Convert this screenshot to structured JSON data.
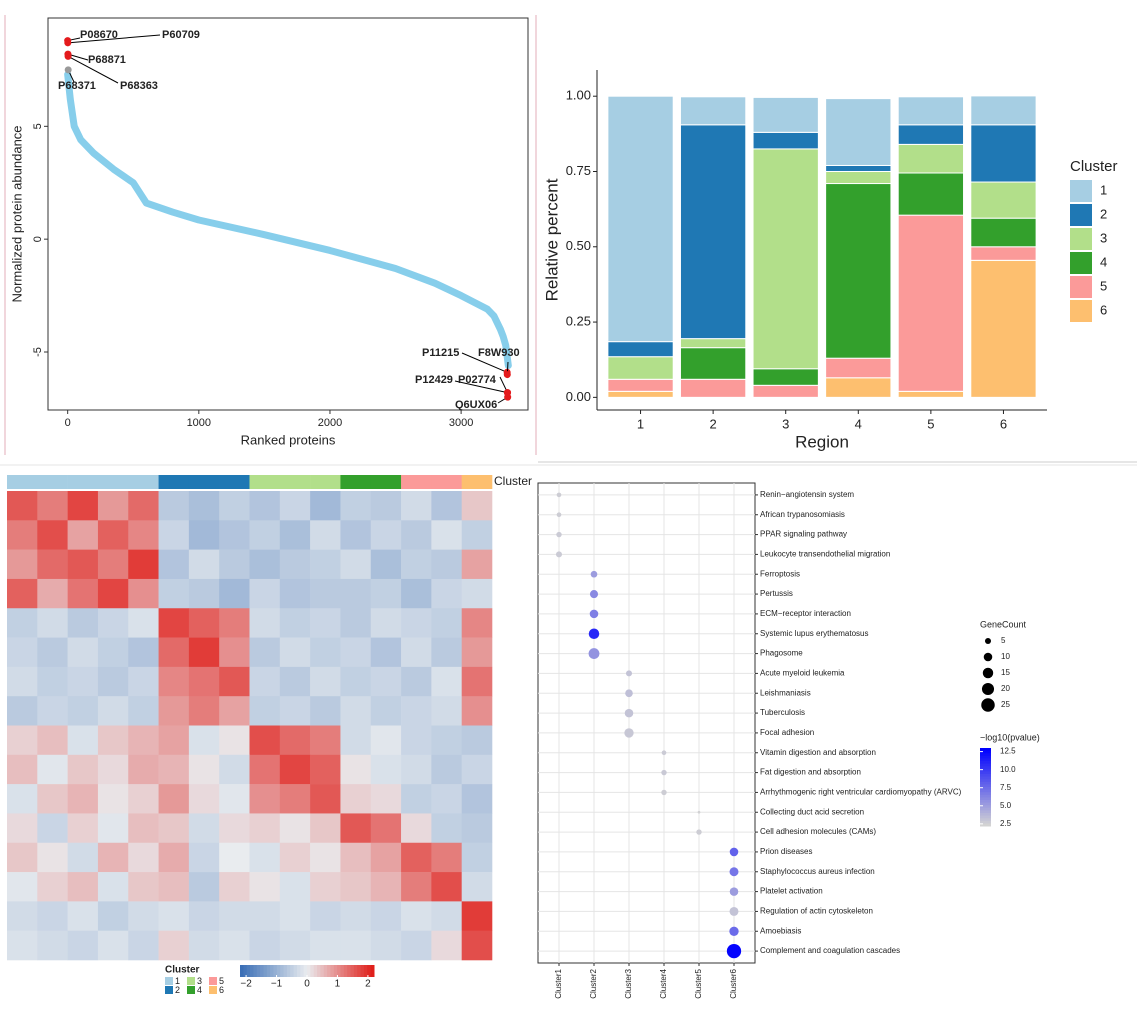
{
  "chart_data": [
    {
      "type": "line",
      "xlabel": "Ranked proteins",
      "ylabel": "Normalized protein abundance",
      "series": [
        {
          "name": null,
          "color": "#87ceeb",
          "x": [
            0,
            20,
            50,
            100,
            200,
            350,
            500,
            600,
            800,
            1000,
            1500,
            2000,
            2500,
            2800,
            3000,
            3100,
            3200,
            3250,
            3300,
            3320,
            3340,
            3360
          ],
          "values": [
            7.3,
            6.2,
            5.0,
            4.4,
            3.8,
            3.1,
            2.5,
            1.6,
            1.2,
            0.85,
            0.2,
            -0.5,
            -1.3,
            -1.95,
            -2.5,
            -2.8,
            -3.1,
            -3.4,
            -4.0,
            -4.3,
            -4.7,
            -5.6
          ]
        }
      ],
      "highlights": {
        "color": "#e41a1c",
        "labels": [
          "P08670",
          "P60709",
          "P68871",
          "P68363",
          "P68371",
          "P11215",
          "F8W930",
          "P12429",
          "P02774",
          "Q6UX06"
        ],
        "x": [
          0,
          1,
          2,
          3,
          4,
          3351,
          3352,
          3353,
          3354,
          3355
        ],
        "values": [
          8.8,
          8.7,
          8.2,
          8.1,
          7.5,
          -5.9,
          -6.0,
          -6.8,
          -6.8,
          -7.0
        ]
      },
      "xlim": [
        -150,
        3510
      ],
      "ylim": [
        -7.57,
        9.8
      ],
      "xticks": [
        0,
        1000,
        2000,
        3000
      ],
      "yticks": [
        {
          "value": -5,
          "label": "-5"
        },
        0,
        5
      ]
    },
    {
      "type": "bar",
      "stacked": true,
      "xlabel": "Region",
      "ylabel": "Relative percent",
      "legend_title": "Cluster",
      "categories": [
        "1",
        "2",
        "3",
        "4",
        "5",
        "6"
      ],
      "series": [
        {
          "name": "6",
          "color": "#fdbf6f",
          "values": [
            0.02,
            0,
            0,
            0.065,
            0.02,
            0.455
          ]
        },
        {
          "name": "5",
          "color": "#fb9a99",
          "values": [
            0.04,
            0.06,
            0.04,
            0.065,
            0.585,
            0.045
          ]
        },
        {
          "name": "4",
          "color": "#33a02c",
          "values": [
            0,
            0.105,
            0.055,
            0.58,
            0.14,
            0.095
          ]
        },
        {
          "name": "3",
          "color": "#b2df8a",
          "values": [
            0.075,
            0.03,
            0.73,
            0.04,
            0.095,
            0.12
          ]
        },
        {
          "name": "2",
          "color": "#1f78b4",
          "values": [
            0.05,
            0.71,
            0.055,
            0.02,
            0.065,
            0.19
          ]
        },
        {
          "name": "1",
          "color": "#a6cee3",
          "values": [
            0.815,
            0.093,
            0.116,
            0.222,
            0.093,
            0.096
          ]
        }
      ],
      "ylim": [
        -0.042,
        1.087
      ],
      "yticks": [
        {
          "value": 0,
          "label": "0.00"
        },
        {
          "value": 0.25,
          "label": "0.25"
        },
        {
          "value": 0.5,
          "label": "0.50"
        },
        {
          "value": 0.75,
          "label": "0.75"
        },
        {
          "value": 1,
          "label": "1.00"
        }
      ]
    },
    {
      "type": "heatmap",
      "annotation_label": "Cluster",
      "legend": {
        "title": "Cluster",
        "names": [
          "1",
          "2",
          "3",
          "4",
          "5",
          "6"
        ],
        "colors": [
          "#a6cee3",
          "#1f78b4",
          "#b2df8a",
          "#33a02c",
          "#fb9a99",
          "#fdbf6f"
        ]
      },
      "column_clusters": [
        "1",
        "1",
        "1",
        "1",
        "1",
        "2",
        "2",
        "2",
        "3",
        "3",
        "3",
        "4",
        "4",
        "5",
        "5",
        "6"
      ],
      "values": [
        [
          1.6,
          1.2,
          1.8,
          0.9,
          1.4,
          -0.6,
          -0.8,
          -0.5,
          -0.7,
          -0.4,
          -0.9,
          -0.5,
          -0.6,
          -0.3,
          -0.7,
          0.4
        ],
        [
          1.2,
          1.7,
          0.8,
          1.5,
          1.1,
          -0.4,
          -0.9,
          -0.7,
          -0.5,
          -0.8,
          -0.3,
          -0.7,
          -0.4,
          -0.6,
          -0.2,
          -0.5
        ],
        [
          0.9,
          1.4,
          1.6,
          1.2,
          1.9,
          -0.7,
          -0.3,
          -0.6,
          -0.8,
          -0.6,
          -0.5,
          -0.3,
          -0.8,
          -0.5,
          -0.6,
          0.8
        ],
        [
          1.5,
          0.7,
          1.3,
          1.8,
          1.0,
          -0.5,
          -0.6,
          -0.9,
          -0.4,
          -0.7,
          -0.6,
          -0.6,
          -0.5,
          -0.8,
          -0.4,
          -0.3
        ],
        [
          -0.5,
          -0.3,
          -0.6,
          -0.4,
          -0.2,
          1.8,
          1.5,
          1.2,
          -0.3,
          -0.5,
          -0.4,
          -0.6,
          -0.3,
          -0.4,
          -0.5,
          1.1
        ],
        [
          -0.4,
          -0.6,
          -0.3,
          -0.5,
          -0.7,
          1.4,
          1.9,
          1.0,
          -0.6,
          -0.3,
          -0.5,
          -0.4,
          -0.7,
          -0.3,
          -0.6,
          0.9
        ],
        [
          -0.3,
          -0.5,
          -0.4,
          -0.6,
          -0.4,
          1.1,
          1.3,
          1.6,
          -0.4,
          -0.6,
          -0.3,
          -0.5,
          -0.4,
          -0.6,
          -0.2,
          1.3
        ],
        [
          -0.6,
          -0.4,
          -0.5,
          -0.3,
          -0.5,
          0.9,
          1.2,
          0.8,
          -0.5,
          -0.4,
          -0.6,
          -0.3,
          -0.5,
          -0.4,
          -0.3,
          1.0
        ],
        [
          0.3,
          0.5,
          -0.2,
          0.4,
          0.6,
          0.8,
          -0.2,
          0.1,
          1.7,
          1.4,
          1.2,
          -0.3,
          -0.1,
          -0.4,
          -0.5,
          -0.6
        ],
        [
          0.5,
          -0.1,
          0.4,
          0.2,
          0.7,
          0.6,
          0.1,
          -0.3,
          1.3,
          1.8,
          1.5,
          0.1,
          -0.2,
          -0.3,
          -0.6,
          -0.4
        ],
        [
          -0.2,
          0.4,
          0.6,
          0.1,
          0.3,
          0.9,
          0.2,
          -0.1,
          1.0,
          1.2,
          1.6,
          0.3,
          0.2,
          -0.5,
          -0.4,
          -0.7
        ],
        [
          0.2,
          -0.4,
          0.3,
          -0.1,
          0.5,
          0.4,
          -0.3,
          0.2,
          0.3,
          0.1,
          0.4,
          1.6,
          1.3,
          0.2,
          -0.5,
          -0.6
        ],
        [
          0.4,
          0.1,
          -0.3,
          0.6,
          0.2,
          0.7,
          -0.4,
          0.0,
          -0.2,
          0.3,
          0.1,
          0.5,
          0.8,
          1.5,
          1.2,
          -0.5
        ],
        [
          -0.1,
          0.3,
          0.5,
          -0.2,
          0.4,
          0.5,
          -0.6,
          0.3,
          0.1,
          -0.2,
          0.3,
          0.4,
          0.6,
          1.2,
          1.7,
          -0.3
        ],
        [
          -0.3,
          -0.4,
          -0.2,
          -0.5,
          -0.3,
          -0.2,
          -0.4,
          -0.3,
          -0.3,
          -0.2,
          -0.4,
          -0.3,
          -0.4,
          -0.2,
          -0.3,
          1.9
        ],
        [
          -0.2,
          -0.3,
          -0.4,
          -0.2,
          -0.4,
          0.3,
          -0.3,
          -0.2,
          -0.4,
          -0.3,
          -0.2,
          -0.2,
          -0.3,
          -0.4,
          0.2,
          1.7
        ]
      ],
      "colorlim": [
        -2.2,
        2.2
      ],
      "colors": [
        "#3b6fb6",
        "#e9ecef",
        "#e0201b"
      ],
      "colorticks": [
        {
          "value": -2,
          "label": "−2"
        },
        {
          "value": -1,
          "label": "−1"
        },
        0,
        1,
        2
      ]
    },
    {
      "type": "dot",
      "categories": [
        "Cluster1",
        "Cluster2",
        "Cluster3",
        "Cluster4",
        "Cluster5",
        "Cluster6"
      ],
      "pathways": [
        "Renin−angiotensin system",
        "African trypanosomiasis",
        "PPAR signaling pathway",
        "Leukocyte transendothelial migration",
        "Ferroptosis",
        "Pertussis",
        "ECM−receptor interaction",
        "Systemic lupus erythematosus",
        "Phagosome",
        "Acute myeloid leukemia",
        "Leishmaniasis",
        "Tuberculosis",
        "Focal adhesion",
        "Vitamin digestion and absorption",
        "Fat digestion and absorption",
        "Arrhythmogenic right ventricular cardiomyopathy (ARVC)",
        "Collecting duct acid secretion",
        "Cell adhesion molecules (CAMs)",
        "Prion diseases",
        "Staphylococcus aureus infection",
        "Platelet activation",
        "Regulation of actin cytoskeleton",
        "Amoebiasis",
        "Complement and coagulation cascades"
      ],
      "x": [
        "Cluster1",
        "Cluster1",
        "Cluster1",
        "Cluster1",
        "Cluster2",
        "Cluster2",
        "Cluster2",
        "Cluster2",
        "Cluster2",
        "Cluster3",
        "Cluster3",
        "Cluster3",
        "Cluster3",
        "Cluster4",
        "Cluster4",
        "Cluster4",
        "Cluster5",
        "Cluster5",
        "Cluster6",
        "Cluster6",
        "Cluster6",
        "Cluster6",
        "Cluster6",
        "Cluster6"
      ],
      "size": [
        3,
        3,
        4,
        5,
        6,
        9,
        10,
        15,
        16,
        5,
        8,
        10,
        12,
        3,
        4,
        4,
        1,
        4,
        10,
        11,
        10,
        11,
        12,
        28
      ],
      "values": [
        2.5,
        2.5,
        2.6,
        2.6,
        5.0,
        6.0,
        6.5,
        11.0,
        5.5,
        3.0,
        3.2,
        3.0,
        2.8,
        2.6,
        2.7,
        2.5,
        2.3,
        2.5,
        8.0,
        7.0,
        5.0,
        3.0,
        7.5,
        12.8
      ],
      "size_legend": {
        "title": "GeneCount",
        "values": [
          5,
          10,
          15,
          20,
          25
        ]
      },
      "color_legend": {
        "title": "−log10(pvalue)",
        "lim": [
          2.2,
          13
        ],
        "colors": [
          "#d3d3d3",
          "#0000ff"
        ],
        "ticks": [
          2.5,
          {
            "value": 5,
            "label": "5.0"
          },
          7.5,
          {
            "value": 10,
            "label": "10.0"
          },
          12.5
        ]
      }
    }
  ]
}
